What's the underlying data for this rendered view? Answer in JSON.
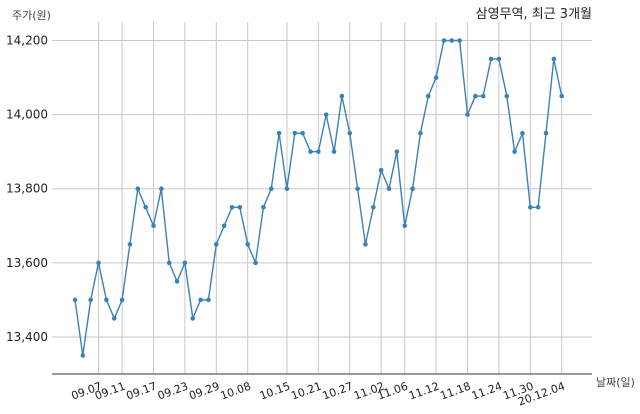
{
  "chart_data": {
    "type": "line",
    "title": "삼영무역, 최근 3개월",
    "ylabel": "주가(원)",
    "xlabel": "날짜(일)",
    "ylim": [
      13300,
      14250
    ],
    "yticks": [
      13400,
      13600,
      13800,
      14000,
      14200
    ],
    "ytick_labels": [
      "13,400",
      "13,600",
      "13,800",
      "14,000",
      "14,200"
    ],
    "grid": true,
    "line_color": "#3a82b5",
    "xtick_labels": [
      "09.07",
      "09.11",
      "09.17",
      "09.23",
      "09.29",
      "10.08",
      "10.15",
      "10.21",
      "10.27",
      "11.02",
      "11.06",
      "11.12",
      "11.18",
      "11.24",
      "11.30",
      "20.12.04"
    ],
    "xtick_positions": [
      3,
      6,
      10,
      14,
      18,
      22,
      27,
      31,
      35,
      39,
      42,
      46,
      50,
      54,
      58,
      62
    ],
    "values": [
      13500,
      13350,
      13500,
      13600,
      13500,
      13450,
      13500,
      13650,
      13800,
      13750,
      13700,
      13800,
      13600,
      13550,
      13600,
      13450,
      13500,
      13500,
      13650,
      13700,
      13750,
      13750,
      13650,
      13600,
      13750,
      13800,
      13950,
      13800,
      13950,
      13950,
      13900,
      13900,
      14000,
      13900,
      14050,
      13950,
      13800,
      13650,
      13750,
      13850,
      13800,
      13900,
      13700,
      13800,
      13950,
      14050,
      14100,
      14200,
      14200,
      14200,
      14000,
      14050,
      14050,
      14150,
      14150,
      14050,
      13900,
      13950,
      13750,
      13750,
      13950,
      14150,
      14050
    ]
  }
}
